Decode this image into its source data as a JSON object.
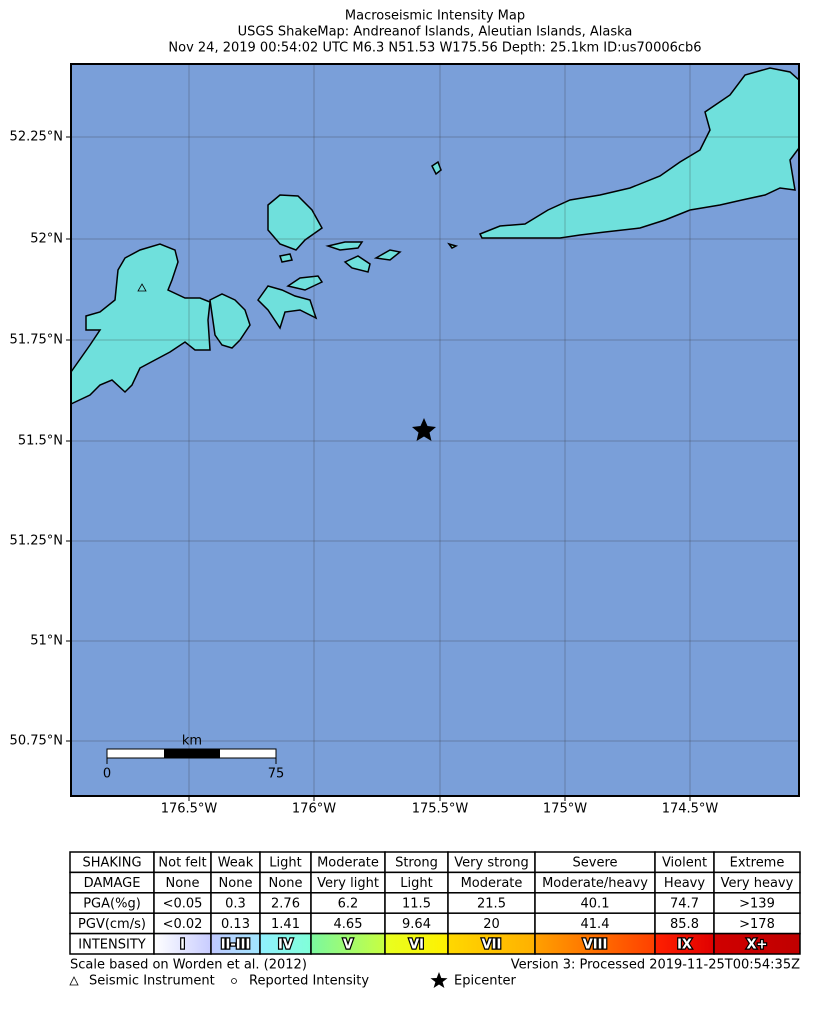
{
  "header": {
    "title": "Macroseismic Intensity Map",
    "subtitle": "USGS ShakeMap: Andreanof Islands, Aleutian Islands, Alaska",
    "details": "Nov 24, 2019 00:54:02 UTC M6.3 N51.53 W175.56 Depth: 25.1km ID:us70006cb6"
  },
  "axes": {
    "lat_labels": [
      "52.25°N",
      "52°N",
      "51.75°N",
      "51.5°N",
      "51.25°N",
      "51°N",
      "50.75°N"
    ],
    "lon_labels": [
      "176.5°W",
      "176°W",
      "175.5°W",
      "175°W",
      "174.5°W"
    ]
  },
  "scale_bar": {
    "unit": "km",
    "start": "0",
    "end": "75"
  },
  "table": {
    "rows": [
      [
        "SHAKING",
        "Not felt",
        "Weak",
        "Light",
        "Moderate",
        "Strong",
        "Very strong",
        "Severe",
        "Violent",
        "Extreme"
      ],
      [
        "DAMAGE",
        "None",
        "None",
        "None",
        "Very light",
        "Light",
        "Moderate",
        "Moderate/heavy",
        "Heavy",
        "Very heavy"
      ],
      [
        "PGA(%g)",
        "<0.05",
        "0.3",
        "2.76",
        "6.2",
        "11.5",
        "21.5",
        "40.1",
        "74.7",
        ">139"
      ],
      [
        "PGV(cm/s)",
        "<0.02",
        "0.13",
        "1.41",
        "4.65",
        "9.64",
        "20",
        "41.4",
        "85.8",
        ">178"
      ],
      [
        "INTENSITY",
        "I",
        "II-III",
        "IV",
        "V",
        "VI",
        "VII",
        "VIII",
        "IX",
        "X+"
      ]
    ]
  },
  "footer": {
    "note": "Scale based on Worden et al. (2012)",
    "version": "Version 3: Processed 2019-11-25T00:54:35Z",
    "legend": [
      "Seismic Instrument",
      "Reported Intensity",
      "Epicenter"
    ]
  }
}
